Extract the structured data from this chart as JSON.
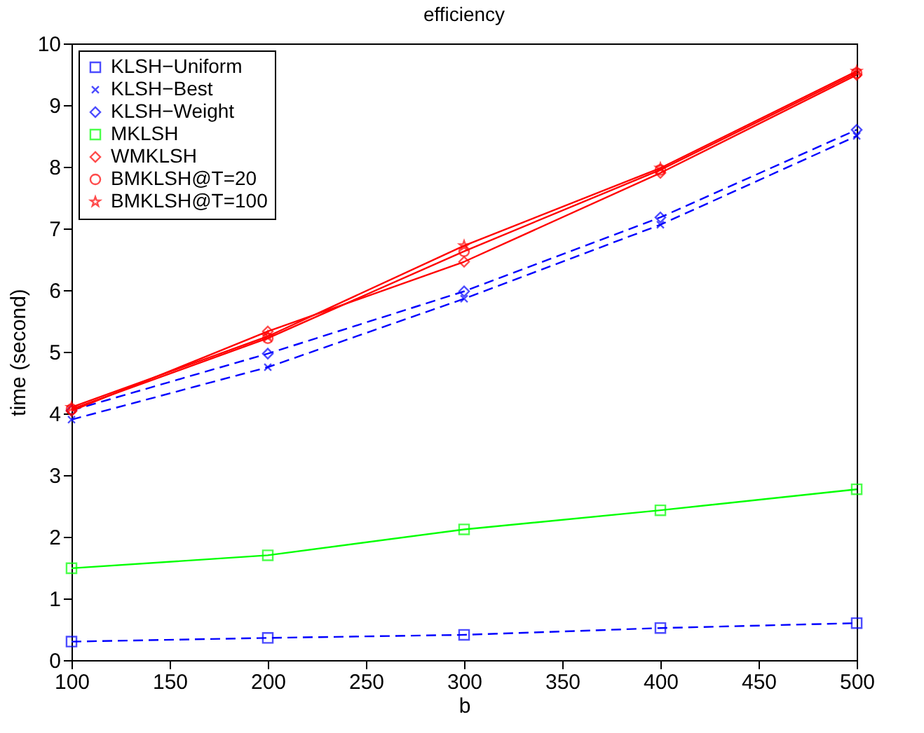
{
  "chart_data": {
    "type": "line",
    "title": "efficiency",
    "xlabel": "b",
    "ylabel": "time (second)",
    "x": [
      100,
      200,
      300,
      400,
      500
    ],
    "xlim": [
      100,
      500
    ],
    "xticks": [
      100,
      150,
      200,
      250,
      300,
      350,
      400,
      450,
      500
    ],
    "ylim": [
      0,
      10
    ],
    "yticks": [
      0,
      1,
      2,
      3,
      4,
      5,
      6,
      7,
      8,
      9,
      10
    ],
    "grid": false,
    "legend": "top left",
    "series": [
      {
        "name": "KLSH−Uniform",
        "color": "#0000ff",
        "marker": "square",
        "line_style": "dashed",
        "values": [
          0.3,
          0.36,
          0.41,
          0.52,
          0.6
        ]
      },
      {
        "name": "KLSH−Best",
        "color": "#0000ff",
        "marker": "cross",
        "line_style": "dashed",
        "values": [
          3.9,
          4.75,
          5.86,
          7.06,
          8.5
        ]
      },
      {
        "name": "KLSH−Weight",
        "color": "#0000ff",
        "marker": "diamond",
        "line_style": "dashed",
        "values": [
          4.05,
          4.97,
          5.98,
          7.18,
          8.6
        ]
      },
      {
        "name": "MKLSH",
        "color": "#00ff00",
        "marker": "square",
        "line_style": "solid",
        "values": [
          1.49,
          1.7,
          2.12,
          2.43,
          2.77
        ]
      },
      {
        "name": "WMKLSH",
        "color": "#ff0000",
        "marker": "diamond",
        "line_style": "solid",
        "values": [
          4.04,
          5.33,
          6.46,
          7.9,
          9.49
        ]
      },
      {
        "name": "BMKLSH@T=20",
        "color": "#ff0000",
        "marker": "circle",
        "line_style": "solid",
        "values": [
          4.07,
          5.22,
          6.63,
          7.95,
          9.52
        ]
      },
      {
        "name": "BMKLSH@T=100",
        "color": "#ff0000",
        "marker": "star",
        "line_style": "solid",
        "values": [
          4.1,
          5.25,
          6.72,
          7.98,
          9.55
        ]
      }
    ]
  }
}
